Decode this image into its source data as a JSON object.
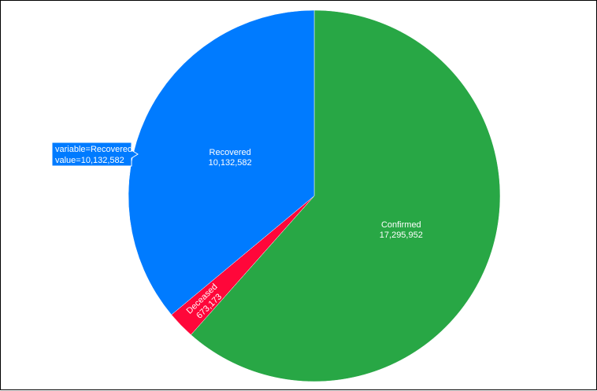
{
  "chart_data": {
    "type": "pie",
    "slices": [
      {
        "label": "Confirmed",
        "value": 17295952,
        "value_text": "17,295,952",
        "color": "#28a745"
      },
      {
        "label": "Deceased",
        "value": 673173,
        "value_text": "673,173",
        "color": "#ff073a"
      },
      {
        "label": "Recovered",
        "value": 10132582,
        "value_text": "10,132,582",
        "color": "#007bff"
      }
    ],
    "start": "top",
    "direction": "clockwise",
    "label_color": "#ffffff",
    "hover_tooltip": {
      "slice": "Recovered",
      "line1": "variable=Recovered",
      "line2": "value=10,132,582"
    }
  }
}
